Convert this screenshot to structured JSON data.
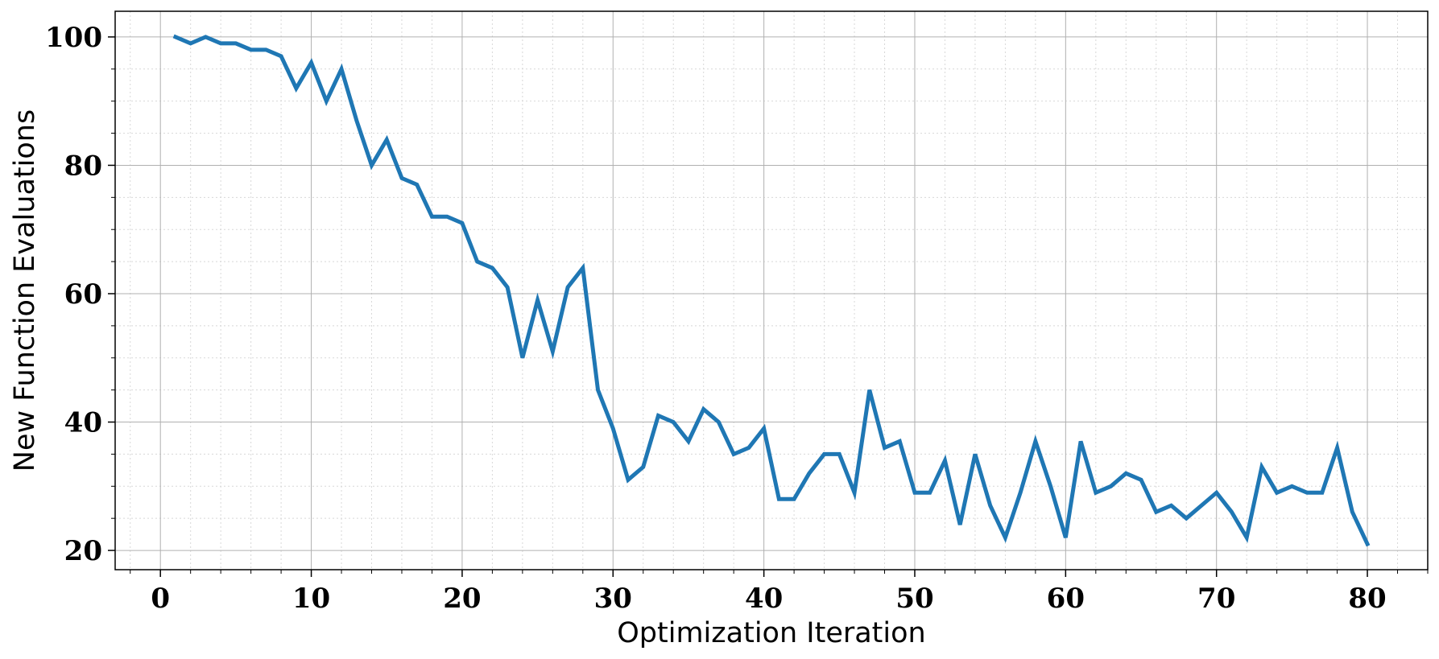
{
  "chart_data": {
    "type": "line",
    "title": "",
    "xlabel": "Optimization Iteration",
    "ylabel": "New Function Evaluations",
    "xlim": [
      -3,
      84
    ],
    "ylim": [
      17,
      104
    ],
    "xticks": [
      0,
      10,
      20,
      30,
      40,
      50,
      60,
      70,
      80
    ],
    "yticks": [
      20,
      40,
      60,
      80,
      100
    ],
    "x_minor_step": 2,
    "y_minor_step": 5,
    "grid": true,
    "legend": false,
    "series": [
      {
        "color": "#1f77b4",
        "x": [
          1,
          2,
          3,
          4,
          5,
          6,
          7,
          8,
          9,
          10,
          11,
          12,
          13,
          14,
          15,
          16,
          17,
          18,
          19,
          20,
          21,
          22,
          23,
          24,
          25,
          26,
          27,
          28,
          29,
          30,
          31,
          32,
          33,
          34,
          35,
          36,
          37,
          38,
          39,
          40,
          41,
          42,
          43,
          44,
          45,
          46,
          47,
          48,
          49,
          50,
          51,
          52,
          53,
          54,
          55,
          56,
          57,
          58,
          59,
          60,
          61,
          62,
          63,
          64,
          65,
          66,
          67,
          68,
          69,
          70,
          71,
          72,
          73,
          74,
          75,
          76,
          77,
          78,
          79,
          80
        ],
        "values": [
          100,
          99,
          100,
          99,
          99,
          98,
          98,
          97,
          92,
          96,
          90,
          95,
          87,
          80,
          84,
          78,
          77,
          72,
          72,
          71,
          65,
          64,
          61,
          50,
          59,
          51,
          61,
          64,
          45,
          39,
          31,
          33,
          41,
          40,
          37,
          42,
          40,
          35,
          36,
          39,
          28,
          28,
          32,
          35,
          35,
          29,
          45,
          36,
          37,
          29,
          29,
          34,
          24,
          35,
          27,
          22,
          29,
          37,
          30,
          22,
          37,
          29,
          30,
          32,
          31,
          26,
          27,
          25,
          27,
          29,
          26,
          22,
          33,
          29,
          30,
          29,
          29,
          36,
          26,
          21
        ]
      }
    ]
  }
}
